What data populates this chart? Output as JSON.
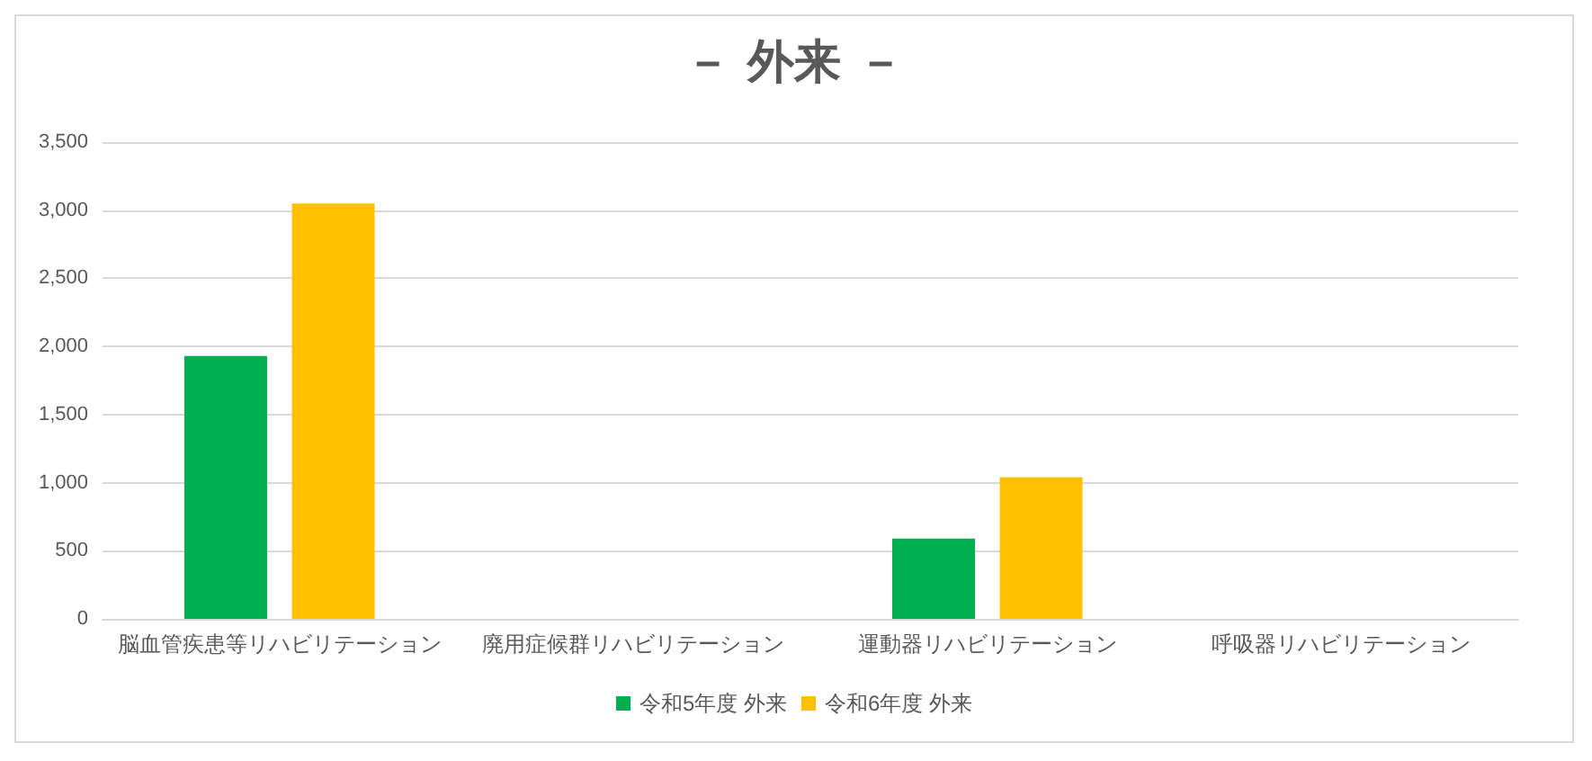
{
  "chart_data": {
    "type": "bar",
    "title": "－ 外来 －",
    "categories": [
      "脳血管疾患等リハビリテーション",
      "廃用症候群リハビリテーション",
      "運動器リハビリテーション",
      "呼吸器リハビリテーション"
    ],
    "series": [
      {
        "name": "令和5年度 外来",
        "color": "#00b050",
        "values": [
          1930,
          0,
          590,
          0
        ]
      },
      {
        "name": "令和6年度 外来",
        "color": "#ffc000",
        "values": [
          3050,
          0,
          1040,
          0
        ]
      }
    ],
    "ylim": [
      0,
      3500
    ],
    "yticks": [
      {
        "value": 0,
        "label": "0"
      },
      {
        "value": 500,
        "label": "500"
      },
      {
        "value": 1000,
        "label": "1,000"
      },
      {
        "value": 1500,
        "label": "1,500"
      },
      {
        "value": 2000,
        "label": "2,000"
      },
      {
        "value": 2500,
        "label": "2,500"
      },
      {
        "value": 3000,
        "label": "3,000"
      },
      {
        "value": 3500,
        "label": "3,500"
      }
    ],
    "grid": "y",
    "legend": "bottom"
  }
}
